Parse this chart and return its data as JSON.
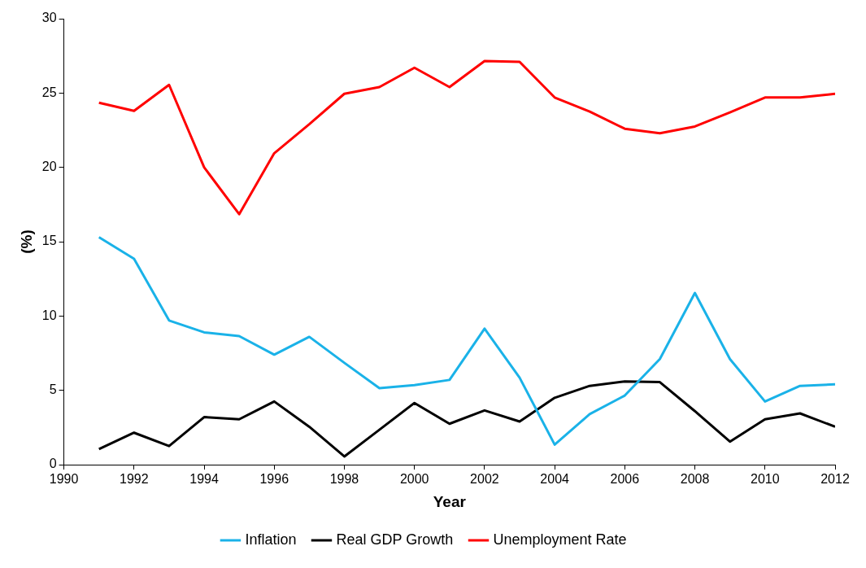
{
  "chart_data": {
    "type": "line",
    "xlabel": "Year",
    "ylabel": "(%)",
    "x": [
      1991,
      1992,
      1993,
      1994,
      1995,
      1996,
      1997,
      1998,
      1999,
      2000,
      2001,
      2002,
      2003,
      2004,
      2005,
      2006,
      2007,
      2008,
      2009,
      2010,
      2011,
      2012
    ],
    "series": [
      {
        "name": "Inflation",
        "color": "#1ab2e8",
        "values": [
          15.3,
          13.85,
          9.7,
          8.9,
          8.65,
          7.4,
          8.6,
          6.85,
          5.15,
          5.35,
          5.7,
          9.15,
          5.85,
          1.35,
          3.4,
          4.65,
          7.1,
          11.55,
          7.1,
          4.25,
          5.3,
          5.4
        ]
      },
      {
        "name": "Real GDP Growth",
        "color": "#000000",
        "values": [
          1.05,
          2.15,
          1.25,
          3.2,
          3.05,
          4.25,
          2.55,
          0.55,
          2.35,
          4.15,
          2.75,
          3.65,
          2.9,
          4.5,
          5.3,
          5.6,
          5.55,
          3.6,
          1.55,
          3.05,
          3.45,
          2.55
        ]
      },
      {
        "name": "Unemployment Rate",
        "color": "#ff0000",
        "values": [
          24.35,
          23.8,
          25.55,
          20.0,
          16.85,
          20.95,
          22.9,
          24.95,
          25.4,
          26.7,
          25.4,
          27.15,
          27.1,
          24.7,
          23.75,
          22.6,
          22.3,
          22.75,
          23.7,
          24.7,
          24.7,
          24.95
        ]
      }
    ],
    "xlim": [
      1990,
      2012
    ],
    "xticks": [
      1990,
      1992,
      1994,
      1996,
      1998,
      2000,
      2002,
      2004,
      2006,
      2008,
      2010,
      2012
    ],
    "ylim": [
      0,
      30
    ],
    "yticks": [
      0,
      5,
      10,
      15,
      20,
      25,
      30
    ],
    "grid": false,
    "legend": "bottom",
    "marker": "none",
    "line_style": "solid"
  }
}
